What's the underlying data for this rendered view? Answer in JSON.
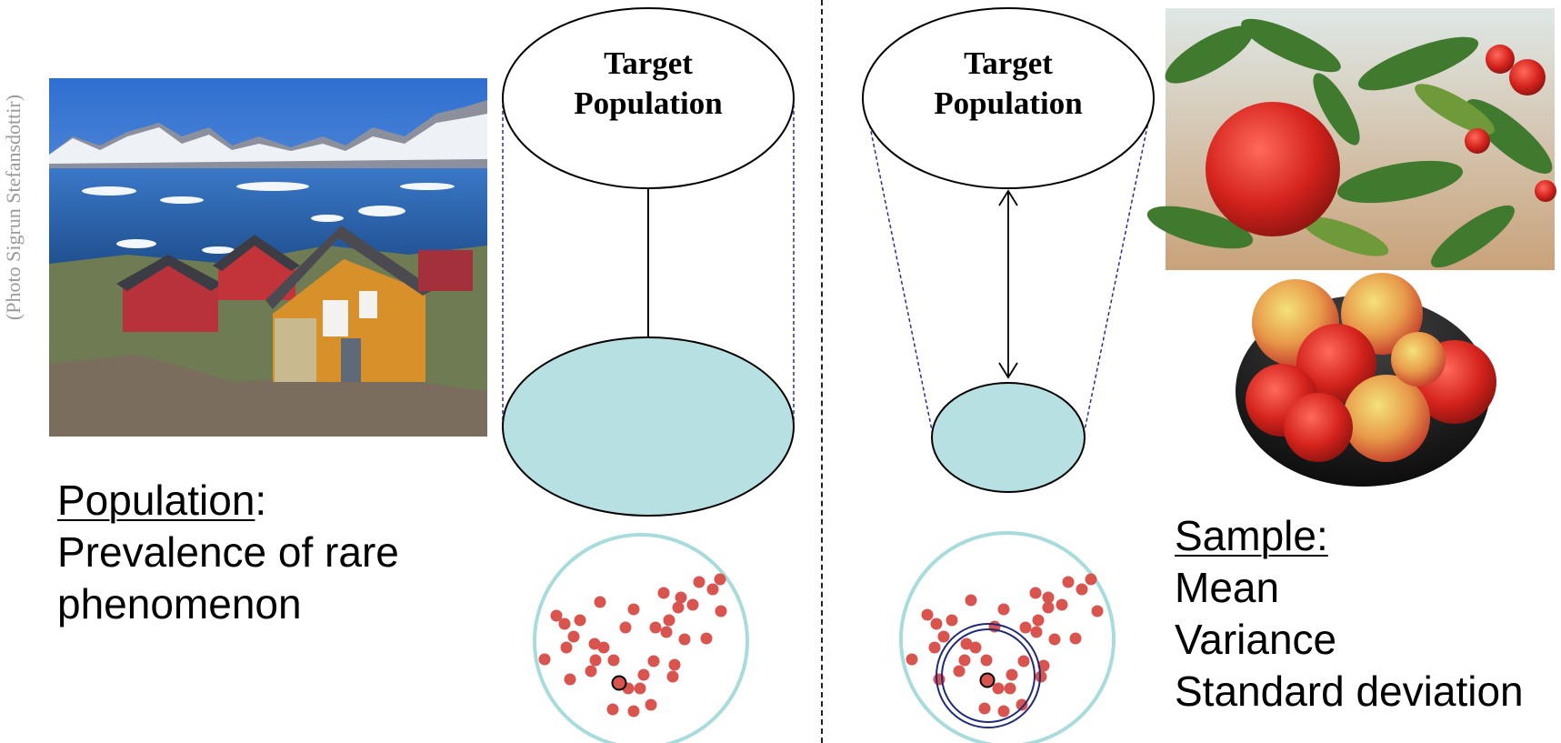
{
  "photo_credit": "(Photo Sigrun Stefansdottir)",
  "left_panel": {
    "heading": "Population",
    "heading_suffix": ":",
    "lines": [
      "Prevalence of rare",
      "phenomenon"
    ]
  },
  "right_panel": {
    "heading": "Sample:",
    "lines": [
      "Mean",
      "Variance",
      "Standard deviation"
    ]
  },
  "diagram_left": {
    "ellipse_title": [
      "Target",
      "Population"
    ]
  },
  "diagram_right": {
    "ellipse_title": [
      "Target",
      "Population"
    ]
  },
  "colors": {
    "sample_fill": "#b6e0e2",
    "dot_red": "#d9534f",
    "circle_border": "#a8dcdc",
    "dashed_line": "#2b2d8f",
    "ring": "#1f2a78"
  }
}
